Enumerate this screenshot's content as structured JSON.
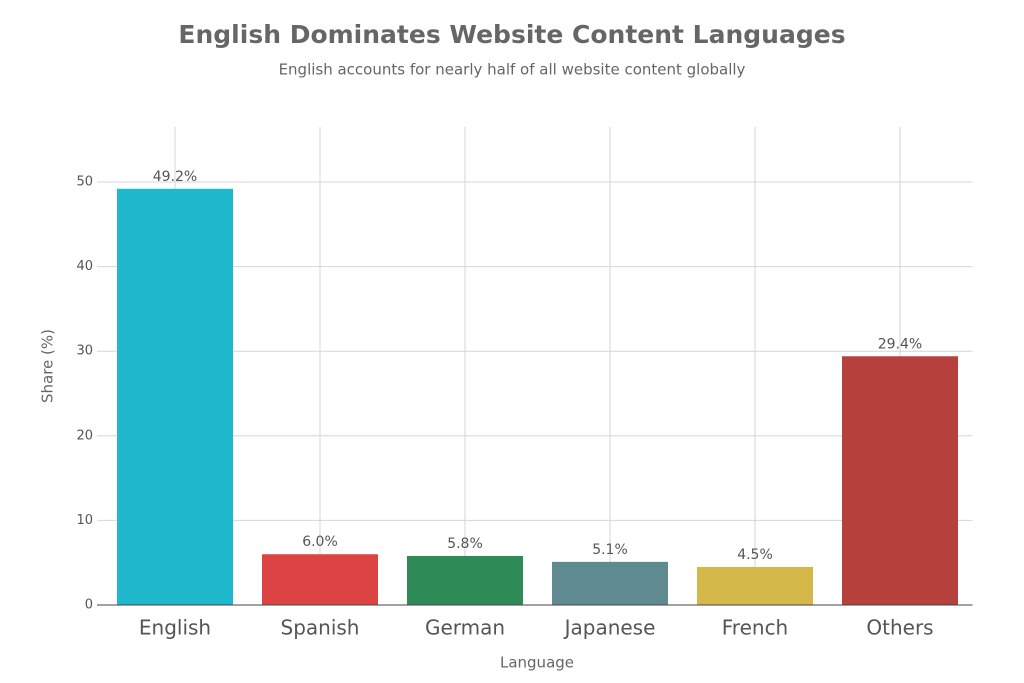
{
  "chart_data": {
    "type": "bar",
    "title": "English Dominates Website Content Languages",
    "subtitle": "English accounts for nearly half of all website content globally",
    "x_label": "Language",
    "y_label": "Share (%)",
    "categories": [
      "English",
      "Spanish",
      "German",
      "Japanese",
      "French",
      "Others"
    ],
    "values": [
      49.2,
      6.0,
      5.8,
      5.1,
      4.5,
      29.4
    ],
    "value_labels": [
      "49.2%",
      "6.0%",
      "5.8%",
      "5.1%",
      "4.5%",
      "29.4%"
    ],
    "colors": [
      "#20b8cc",
      "#dc4444",
      "#2e8b57",
      "#5f8a8f",
      "#d4b84a",
      "#b5403c"
    ],
    "ylim": [
      0,
      56.5
    ],
    "yticks": [
      0,
      10,
      20,
      30,
      40,
      50
    ],
    "grid": true
  }
}
